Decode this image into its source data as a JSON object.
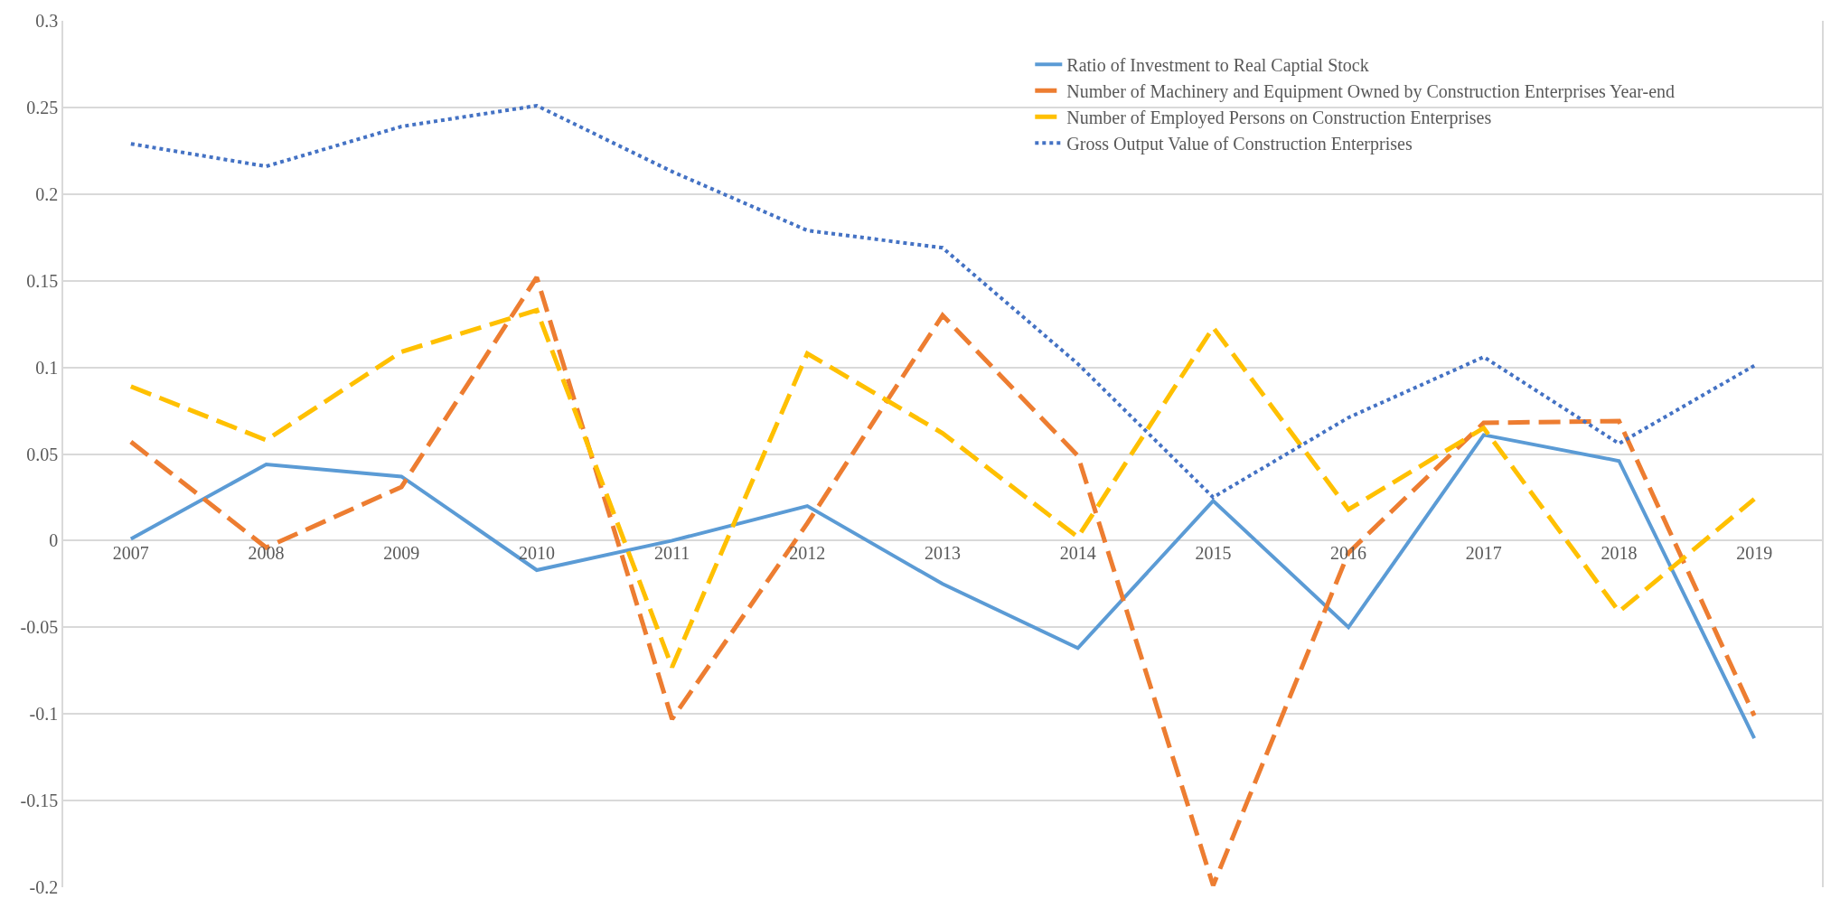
{
  "chart_data": {
    "type": "line",
    "categories": [
      "2007",
      "2008",
      "2009",
      "2010",
      "2011",
      "2012",
      "2013",
      "2014",
      "2015",
      "2016",
      "2017",
      "2018",
      "2019"
    ],
    "ylim": [
      -0.2,
      0.3
    ],
    "yticks": [
      -0.2,
      -0.15,
      -0.1,
      -0.05,
      0,
      0.05,
      0.1,
      0.15,
      0.2,
      0.25,
      0.3
    ],
    "grid": "y",
    "legend": "top right",
    "series": [
      {
        "name": "Ratio of Investment to Real Captial Stock",
        "color": "#5b9bd5",
        "line_style": "solid",
        "values": [
          0.001,
          0.044,
          0.037,
          -0.017,
          0.0,
          0.02,
          -0.025,
          -0.062,
          0.023,
          -0.05,
          0.061,
          0.046,
          -0.114
        ]
      },
      {
        "name": "Number of Machinery and Equipment Owned by Construction Enterprises Year-end",
        "color": "#ed7d31",
        "line_style": "dashed",
        "values": [
          0.057,
          -0.004,
          0.031,
          0.152,
          -0.103,
          0.01,
          0.13,
          0.049,
          -0.199,
          -0.007,
          0.068,
          0.069,
          -0.101
        ]
      },
      {
        "name": "Number of Employed Persons on Construction Enterprises",
        "color": "#ffc000",
        "line_style": "dashed",
        "values": [
          0.089,
          0.058,
          0.109,
          0.133,
          -0.073,
          0.108,
          0.062,
          0.002,
          0.123,
          0.018,
          0.065,
          -0.041,
          0.024
        ]
      },
      {
        "name": "Gross Output Value of Construction Enterprises",
        "color": "#4472c4",
        "line_style": "dotted",
        "values": [
          0.229,
          0.216,
          0.239,
          0.251,
          0.213,
          0.179,
          0.169,
          0.102,
          0.025,
          0.071,
          0.106,
          0.056,
          0.101
        ]
      }
    ]
  }
}
